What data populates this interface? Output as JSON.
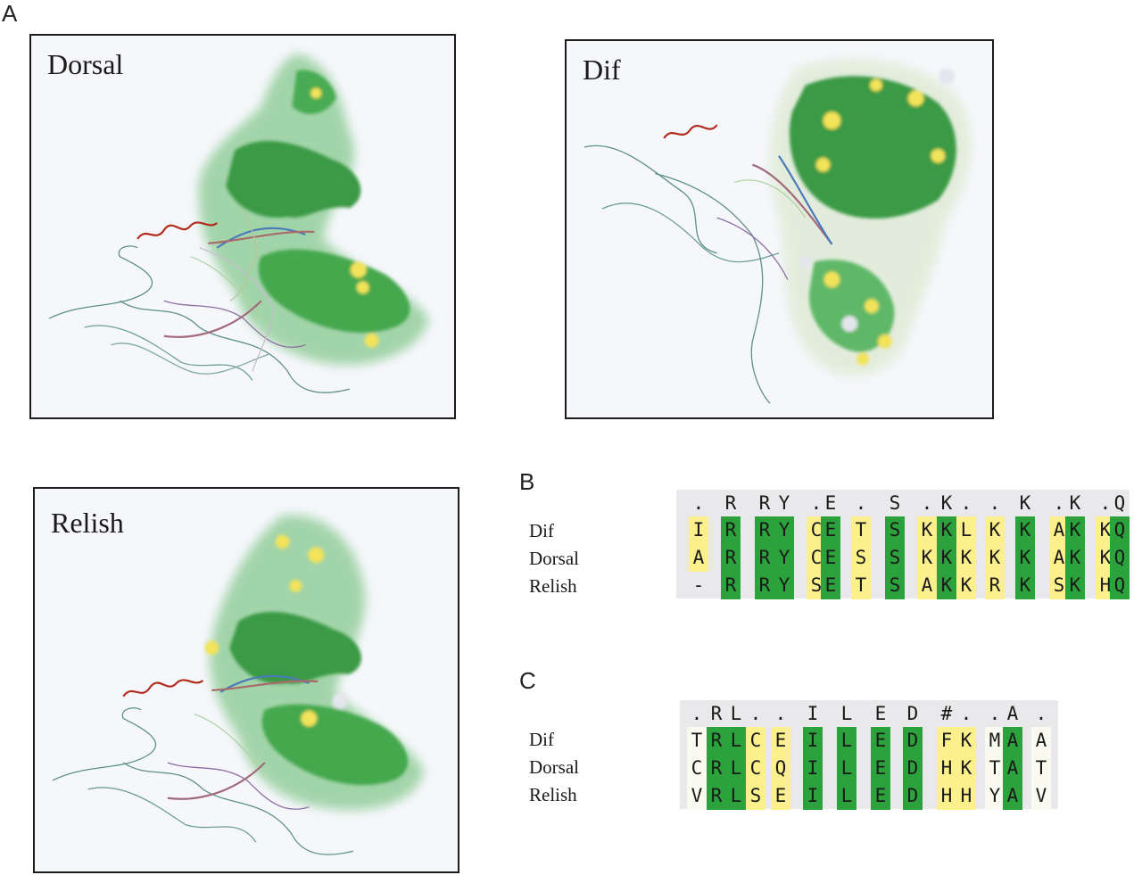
{
  "panel_labels": {
    "a": "A",
    "b": "B",
    "c": "C"
  },
  "structures": {
    "dorsal": "Dorsal",
    "dif": "Dif",
    "relish": "Relish"
  },
  "colors": {
    "green": "#2ca23c",
    "yellow": "#fbf08c",
    "pale": "#fafaf0",
    "grid_bg": "#e9e9ec",
    "surface_green": "#5fb868",
    "surface_dark": "#3a9a44",
    "surface_yellow": "#f2e35a",
    "surface_white": "#e4e6ee",
    "helix_red": "#b02a1c"
  },
  "alignment_b": {
    "row_names": [
      "Dif",
      "Dorsal",
      "Relish"
    ],
    "consensus": [
      ".",
      "R",
      "R",
      "Y",
      ".",
      "E",
      ".",
      "S",
      ".",
      "K",
      ".",
      ".",
      "K",
      ".",
      "K",
      ".",
      "Q"
    ],
    "rows": [
      [
        "I",
        "R",
        "R",
        "Y",
        "C",
        "E",
        "T",
        "S",
        "K",
        "K",
        "L",
        "K",
        "K",
        "A",
        "K",
        "K",
        "Q"
      ],
      [
        "A",
        "R",
        "R",
        "Y",
        "C",
        "E",
        "S",
        "S",
        "K",
        "K",
        "K",
        "K",
        "K",
        "A",
        "K",
        "K",
        "Q"
      ],
      [
        "-",
        "R",
        "R",
        "Y",
        "S",
        "E",
        "T",
        "S",
        "A",
        "K",
        "K",
        "R",
        "K",
        "S",
        "K",
        "H",
        "Q"
      ]
    ]
  },
  "alignment_c": {
    "row_names": [
      "Dif",
      "Dorsal",
      "Relish"
    ],
    "consensus": [
      ".",
      "R",
      "L",
      ".",
      ".",
      "I",
      "L",
      "E",
      "D",
      "#",
      ".",
      ".",
      "A",
      "."
    ],
    "rows": [
      [
        "T",
        "R",
        "L",
        "C",
        "E",
        "I",
        "L",
        "E",
        "D",
        "F",
        "K",
        "M",
        "A",
        "A"
      ],
      [
        "C",
        "R",
        "L",
        "C",
        "Q",
        "I",
        "L",
        "E",
        "D",
        "H",
        "K",
        "T",
        "A",
        "T"
      ],
      [
        "V",
        "R",
        "L",
        "S",
        "E",
        "I",
        "L",
        "E",
        "D",
        "H",
        "H",
        "Y",
        "A",
        "V"
      ]
    ]
  }
}
